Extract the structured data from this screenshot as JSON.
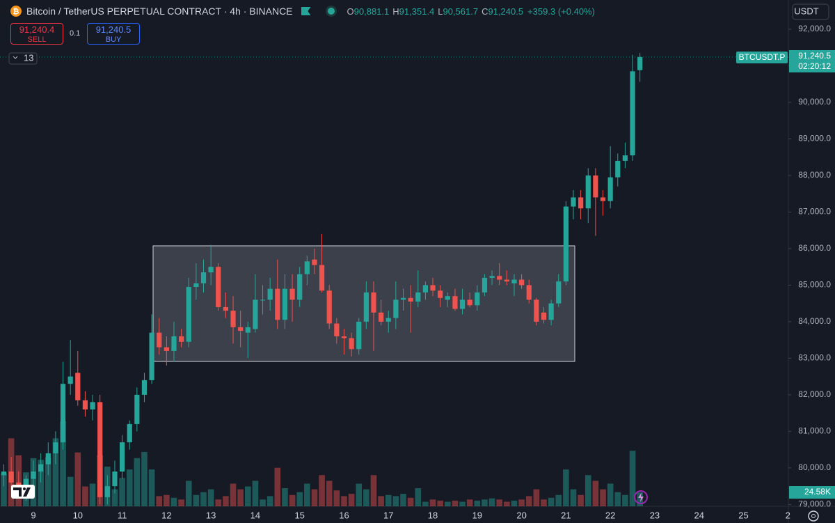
{
  "header": {
    "title": "Bitcoin / TetherUS PERPETUAL CONTRACT · 4h · BINANCE",
    "ohlc": [
      {
        "key": "O",
        "value": "90,881.1"
      },
      {
        "key": "H",
        "value": "91,351.4"
      },
      {
        "key": "L",
        "value": "90,561.7"
      },
      {
        "key": "C",
        "value": "91,240.5"
      }
    ],
    "change": "+359.3 (+0.40%)"
  },
  "trade": {
    "sell_price": "91,240.4",
    "sell": "SELL",
    "size": "0.1",
    "buy_price": "91,240.5",
    "buy": "BUY"
  },
  "indicator_count": 13,
  "axis_currency": "USDT",
  "price_tag": {
    "symbol": "BTCUSDT.P",
    "price": "91,240.5",
    "countdown": "02:20:12"
  },
  "chart_data": {
    "type": "candlestick",
    "up_color": "#26a69a",
    "down_color": "#ef5350",
    "grid": false,
    "ylim": [
      78950,
      92800
    ],
    "yticks": [
      {
        "value": 92000,
        "label": "92,000.0"
      },
      {
        "value": 91000,
        "label": "91,000.0"
      },
      {
        "value": 90000,
        "label": "90,000.0"
      },
      {
        "value": 89000,
        "label": "89,000.0"
      },
      {
        "value": 88000,
        "label": "88,000.0"
      },
      {
        "value": 87000,
        "label": "87,000.0"
      },
      {
        "value": 86000,
        "label": "86,000.0"
      },
      {
        "value": 85000,
        "label": "85,000.0"
      },
      {
        "value": 84000,
        "label": "84,000.0"
      },
      {
        "value": 83000,
        "label": "83,000.0"
      },
      {
        "value": 82000,
        "label": "82,000.0"
      },
      {
        "value": 81000,
        "label": "81,000.0"
      },
      {
        "value": 80000,
        "label": "80,000.0"
      },
      {
        "value": 79000,
        "label": "79,000.0"
      }
    ],
    "categories": [
      null,
      null,
      null,
      null,
      "9",
      null,
      null,
      null,
      null,
      null,
      "10",
      null,
      null,
      null,
      null,
      null,
      "11",
      null,
      null,
      null,
      null,
      null,
      "12",
      null,
      null,
      null,
      null,
      null,
      "13",
      null,
      null,
      null,
      null,
      null,
      "14",
      null,
      null,
      null,
      null,
      null,
      "15",
      null,
      null,
      null,
      null,
      null,
      "16",
      null,
      null,
      null,
      null,
      null,
      "17",
      null,
      null,
      null,
      null,
      null,
      "18",
      null,
      null,
      null,
      null,
      null,
      "19",
      null,
      null,
      null,
      null,
      null,
      "20",
      null,
      null,
      null,
      null,
      null,
      "21",
      null,
      null,
      null,
      null,
      null,
      "22",
      null,
      null,
      null,
      null,
      null,
      "23",
      null,
      null,
      null,
      null,
      null,
      "24",
      null,
      null,
      null,
      null,
      null,
      "25",
      null,
      null,
      null,
      null,
      null,
      "2"
    ],
    "open": [
      79800,
      79900,
      79600,
      79400,
      79700,
      79900,
      80100,
      80400,
      80700,
      82300,
      82600,
      81850,
      81600,
      81800,
      79200,
      79500,
      79900,
      80700,
      81200,
      82000,
      82400,
      83700,
      83300,
      83200,
      83600,
      83450,
      84950,
      85050,
      85350,
      85500,
      84400,
      84300,
      83850,
      83700,
      83800,
      84600,
      84600,
      84900,
      84050,
      84900,
      84600,
      85300,
      85700,
      85550,
      84850,
      83950,
      83600,
      83550,
      83250,
      84000,
      84800,
      84250,
      84000,
      84100,
      84600,
      84650,
      84550,
      84800,
      85000,
      84850,
      84600,
      84700,
      84350,
      84600,
      84450,
      84800,
      85200,
      85250,
      85150,
      85050,
      85150,
      85000,
      84600,
      84250,
      84050,
      84500,
      85100,
      87150,
      87400,
      87100,
      88000,
      87400,
      87300,
      87950,
      88400,
      88550,
      90881.1,
      null,
      null,
      null,
      null,
      null,
      null,
      null,
      null,
      null,
      null,
      null,
      null,
      null,
      null,
      null,
      null,
      null,
      null,
      null,
      null
    ],
    "high": [
      80100,
      80300,
      79900,
      79800,
      80200,
      80400,
      80700,
      81000,
      82900,
      83500,
      83200,
      82100,
      82000,
      82000,
      79800,
      80200,
      80900,
      81300,
      82200,
      82600,
      84200,
      84100,
      83600,
      84000,
      83800,
      85200,
      85600,
      85700,
      86100,
      85600,
      84800,
      84700,
      84300,
      84000,
      85300,
      85000,
      85200,
      85700,
      85300,
      85300,
      85500,
      85800,
      86000,
      86400,
      85000,
      84100,
      83800,
      83700,
      84100,
      85100,
      85100,
      84600,
      84300,
      85100,
      84900,
      85000,
      85400,
      85100,
      85200,
      85000,
      84800,
      84900,
      84900,
      84800,
      85000,
      85300,
      85400,
      85600,
      85400,
      85300,
      85300,
      85150,
      84650,
      84400,
      84600,
      85300,
      87300,
      87600,
      87600,
      88200,
      88200,
      87600,
      88800,
      88600,
      88900,
      91300,
      91351.4,
      null,
      null,
      null,
      null,
      null,
      null,
      null,
      null,
      null,
      null,
      null,
      null,
      null,
      null,
      null,
      null,
      null,
      null,
      null,
      null
    ],
    "low": [
      79500,
      79400,
      79200,
      79100,
      79500,
      79600,
      79800,
      80100,
      80500,
      82000,
      81700,
      81400,
      81300,
      79000,
      79000,
      79300,
      79700,
      80500,
      81000,
      81800,
      82300,
      83100,
      82800,
      82900,
      83300,
      83300,
      84600,
      84800,
      85000,
      84300,
      84100,
      83400,
      83300,
      83000,
      83700,
      84200,
      84300,
      83800,
      83800,
      84000,
      84400,
      85000,
      85300,
      84800,
      83800,
      83400,
      83100,
      83050,
      83100,
      83800,
      83200,
      83900,
      83700,
      83800,
      84300,
      83700,
      84400,
      84600,
      84700,
      84400,
      84400,
      84300,
      84200,
      84400,
      84300,
      84700,
      85000,
      85000,
      85000,
      84700,
      84900,
      84500,
      83900,
      83950,
      83900,
      84400,
      85000,
      86800,
      86800,
      86700,
      86350,
      86900,
      87100,
      87700,
      88200,
      88400,
      90561.7,
      null,
      null,
      null,
      null,
      null,
      null,
      null,
      null,
      null,
      null,
      null,
      null,
      null,
      null,
      null,
      null,
      null,
      null,
      null,
      null
    ],
    "close": [
      79900,
      79600,
      79400,
      79700,
      79900,
      80100,
      80400,
      80700,
      82300,
      82500,
      81850,
      81600,
      81800,
      79200,
      79500,
      79900,
      80700,
      81200,
      82000,
      82400,
      83700,
      83300,
      83200,
      83600,
      83450,
      84950,
      85050,
      85350,
      85500,
      84400,
      84300,
      83850,
      83750,
      83850,
      84600,
      84600,
      84900,
      84050,
      84900,
      84600,
      85300,
      85650,
      85550,
      84850,
      83950,
      83600,
      83550,
      83250,
      84000,
      84800,
      84250,
      84000,
      84100,
      84600,
      84650,
      84550,
      84800,
      85000,
      84850,
      84650,
      84700,
      84350,
      84600,
      84450,
      84800,
      85200,
      85250,
      85150,
      85100,
      85150,
      85000,
      84600,
      84000,
      84050,
      84500,
      85100,
      87150,
      87400,
      87100,
      88000,
      87400,
      87300,
      87950,
      88400,
      88550,
      90850,
      91240.5,
      null,
      null,
      null,
      null,
      null,
      null,
      null,
      null,
      null,
      null,
      null,
      null,
      null,
      null,
      null,
      null,
      null,
      null,
      null,
      null
    ],
    "volume": {
      "values": [
        58000,
        120000,
        90000,
        60000,
        85000,
        82000,
        86000,
        120000,
        150000,
        52000,
        95000,
        35000,
        40000,
        90000,
        70000,
        30000,
        50000,
        65000,
        85000,
        96000,
        65000,
        18000,
        20000,
        15000,
        12000,
        45000,
        20000,
        25000,
        30000,
        12000,
        18000,
        40000,
        30000,
        35000,
        45000,
        12000,
        18000,
        68000,
        32000,
        20000,
        25000,
        40000,
        30000,
        55000,
        45000,
        28000,
        18000,
        22000,
        40000,
        30000,
        55000,
        18000,
        20000,
        18000,
        22000,
        15000,
        32000,
        8000,
        12000,
        10000,
        8000,
        10000,
        8000,
        12000,
        10000,
        12000,
        14000,
        12000,
        8000,
        10000,
        12000,
        18000,
        30000,
        12000,
        15000,
        20000,
        65000,
        30000,
        20000,
        55000,
        45000,
        30000,
        40000,
        25000,
        20000,
        98000,
        24580,
        null,
        null,
        null,
        null,
        null,
        null,
        null,
        null,
        null,
        null,
        null,
        null,
        null,
        null,
        null,
        null,
        null,
        null,
        null,
        null
      ],
      "value_labels": [
        null,
        null,
        null,
        null,
        null,
        null,
        null,
        null,
        null,
        null,
        null,
        null,
        null,
        null,
        null,
        null,
        null,
        null,
        null,
        null,
        null,
        null,
        null,
        null,
        null,
        null,
        null,
        null,
        null,
        null,
        null,
        null,
        null,
        null,
        null,
        null,
        null,
        null,
        null,
        null,
        null,
        null,
        null,
        null,
        null,
        null,
        null,
        null,
        null,
        null,
        null,
        null,
        null,
        null,
        null,
        null,
        null,
        null,
        null,
        null,
        null,
        null,
        null,
        null,
        null,
        null,
        null,
        null,
        null,
        null,
        null,
        null,
        null,
        null,
        null,
        null,
        null,
        null,
        null,
        null,
        null,
        null,
        null,
        null,
        null,
        null,
        "24.58K",
        null,
        null,
        null,
        null,
        null,
        null,
        null,
        null,
        null,
        null,
        null,
        null,
        null,
        null,
        null,
        null,
        null,
        null,
        null,
        null
      ]
    }
  }
}
